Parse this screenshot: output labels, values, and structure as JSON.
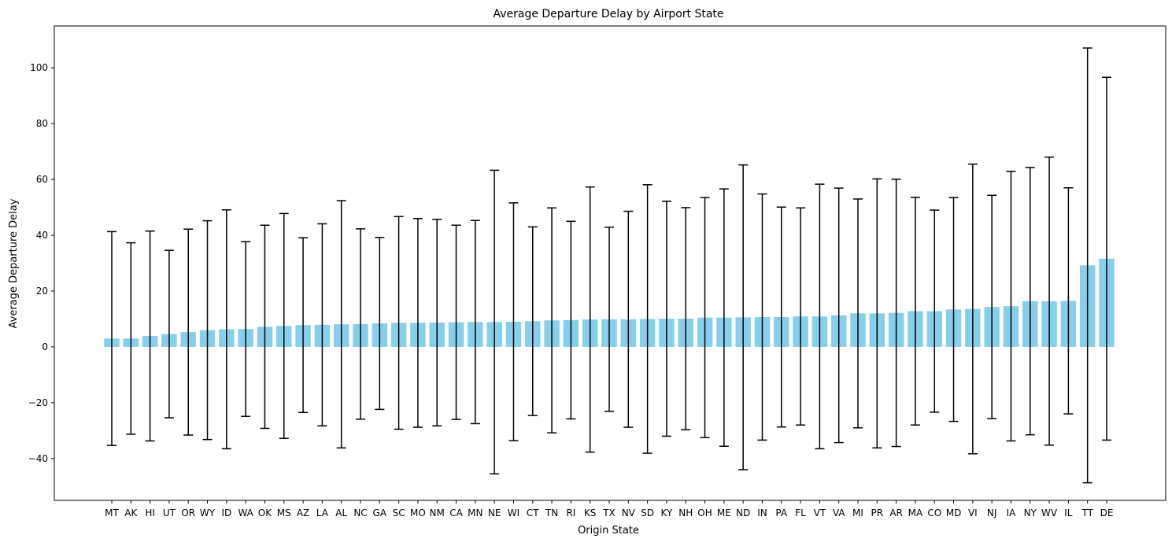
{
  "chart_data": {
    "type": "bar",
    "title": "Average Departure Delay by Airport State",
    "xlabel": "Origin State",
    "ylabel": "Average Departure Delay",
    "ylim": [
      -55,
      115
    ],
    "yticks": [
      -40,
      -20,
      0,
      20,
      40,
      60,
      80,
      100
    ],
    "grid": false,
    "bar_color": "#87ceeb",
    "errorbar_color": "#000000",
    "categories": [
      "MT",
      "AK",
      "HI",
      "UT",
      "OR",
      "WY",
      "ID",
      "WA",
      "OK",
      "MS",
      "AZ",
      "LA",
      "AL",
      "NC",
      "GA",
      "SC",
      "MO",
      "NM",
      "CA",
      "MN",
      "NE",
      "WI",
      "CT",
      "TN",
      "RI",
      "KS",
      "TX",
      "NV",
      "SD",
      "KY",
      "NH",
      "OH",
      "ME",
      "ND",
      "IN",
      "PA",
      "FL",
      "VT",
      "VA",
      "MI",
      "PR",
      "AR",
      "MA",
      "CO",
      "MD",
      "VI",
      "NJ",
      "IA",
      "NY",
      "WV",
      "IL",
      "TT",
      "DE"
    ],
    "values": [
      3.0,
      3.0,
      3.9,
      4.6,
      5.3,
      6.0,
      6.3,
      6.4,
      7.2,
      7.5,
      7.8,
      7.9,
      8.1,
      8.2,
      8.4,
      8.6,
      8.6,
      8.7,
      8.8,
      8.9,
      8.9,
      9.0,
      9.2,
      9.5,
      9.6,
      9.8,
      9.9,
      9.9,
      10.0,
      10.1,
      10.1,
      10.5,
      10.5,
      10.6,
      10.7,
      10.7,
      10.9,
      10.9,
      11.3,
      12.0,
      12.0,
      12.2,
      12.8,
      12.8,
      13.4,
      13.6,
      14.3,
      14.6,
      16.4,
      16.4,
      16.5,
      29.2,
      31.6
    ],
    "errors": [
      38.3,
      34.3,
      37.6,
      30.0,
      36.9,
      39.2,
      42.8,
      31.3,
      36.4,
      40.3,
      31.3,
      36.2,
      44.3,
      34.1,
      30.8,
      38.1,
      37.4,
      37.0,
      34.8,
      36.4,
      54.4,
      42.6,
      33.8,
      40.3,
      35.4,
      47.5,
      33.0,
      38.7,
      48.1,
      42.1,
      39.8,
      43.0,
      46.1,
      54.6,
      44.1,
      39.4,
      38.9,
      47.4,
      45.6,
      41.0,
      48.2,
      47.9,
      40.8,
      36.2,
      40.1,
      51.9,
      40.0,
      48.3,
      47.9,
      51.6,
      40.5,
      77.9,
      65.0
    ]
  }
}
